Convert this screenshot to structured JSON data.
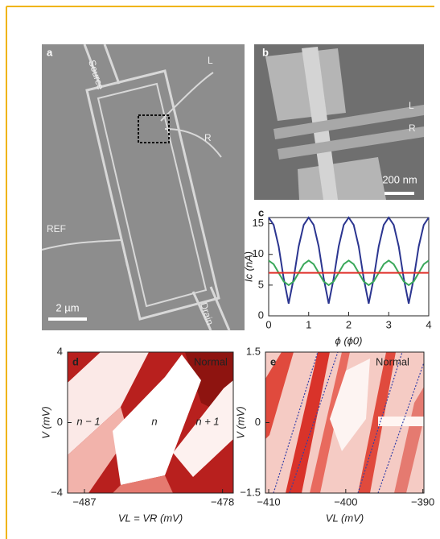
{
  "panels": {
    "a": {
      "label": "a",
      "texts": [
        "Source",
        "L",
        "R",
        "REF",
        "Drain"
      ],
      "scale_bar": "2 µm"
    },
    "b": {
      "label": "b",
      "texts": [
        "L",
        "R"
      ],
      "scale_bar": "200 nm"
    }
  },
  "chart_data": [
    {
      "type": "line",
      "title": "c",
      "xlabel": "ϕ (ϕ0)",
      "ylabel": "Ic (nA)",
      "x": [
        0,
        0.125,
        0.25,
        0.375,
        0.5,
        0.625,
        0.75,
        0.875,
        1,
        1.125,
        1.25,
        1.375,
        1.5,
        1.625,
        1.75,
        1.875,
        2,
        2.125,
        2.25,
        2.375,
        2.5,
        2.625,
        2.75,
        2.875,
        3,
        3.125,
        3.25,
        3.375,
        3.5,
        3.625,
        3.75,
        3.875,
        4
      ],
      "series": [
        {
          "color": "#2b3590",
          "values": [
            16,
            14.8,
            11.3,
            6.1,
            2,
            6.1,
            11.3,
            14.8,
            16,
            14.8,
            11.3,
            6.1,
            2,
            6.1,
            11.3,
            14.8,
            16,
            14.8,
            11.3,
            6.1,
            2,
            6.1,
            11.3,
            14.8,
            16,
            14.8,
            11.3,
            6.1,
            2,
            6.1,
            11.3,
            14.8,
            16
          ]
        },
        {
          "color": "#3aa85a",
          "values": [
            9,
            8.4,
            7,
            5.6,
            5,
            5.6,
            7,
            8.4,
            9,
            8.4,
            7,
            5.6,
            5,
            5.6,
            7,
            8.4,
            9,
            8.4,
            7,
            5.6,
            5,
            5.6,
            7,
            8.4,
            9,
            8.4,
            7,
            5.6,
            5,
            5.6,
            7,
            8.4,
            9
          ]
        },
        {
          "color": "#e0302a",
          "values": [
            7,
            7,
            7,
            7,
            7,
            7,
            7,
            7,
            7,
            7,
            7,
            7,
            7,
            7,
            7,
            7,
            7,
            7,
            7,
            7,
            7,
            7,
            7,
            7,
            7,
            7,
            7,
            7,
            7,
            7,
            7,
            7,
            7
          ]
        }
      ],
      "xlim": [
        0,
        4
      ],
      "xticks": [
        0,
        1,
        2,
        3,
        4
      ],
      "ylim": [
        0,
        16
      ],
      "yticks": [
        0,
        5,
        10,
        15
      ]
    },
    {
      "type": "heatmap",
      "title": "d",
      "xlabel": "VL = VR (mV)",
      "ylabel": "V (mV)",
      "annotations": [
        "Normal",
        "n − 1",
        "n",
        "n + 1"
      ],
      "xlim": [
        -488.1,
        -477.3
      ],
      "xticks": [
        {
          "value": -487,
          "label": "−487"
        },
        {
          "value": -478,
          "label": "−478"
        }
      ],
      "ylim": [
        -4,
        4
      ],
      "yticks": [
        {
          "value": -4,
          "label": "−4"
        },
        0,
        4
      ]
    },
    {
      "type": "heatmap",
      "title": "e",
      "xlabel": "VL (mV)",
      "ylabel": "V (mV)",
      "annotations": [
        "Normal"
      ],
      "xlim": [
        -410.42,
        -389.86
      ],
      "xticks": [
        {
          "value": -410,
          "label": "−410"
        },
        {
          "value": -400,
          "label": "−400"
        },
        {
          "value": -390,
          "label": "−390"
        }
      ],
      "ylim": [
        -1.5,
        1.5
      ],
      "yticks": [
        {
          "value": -1.5,
          "label": "−1.5"
        },
        0,
        1.5
      ]
    }
  ]
}
